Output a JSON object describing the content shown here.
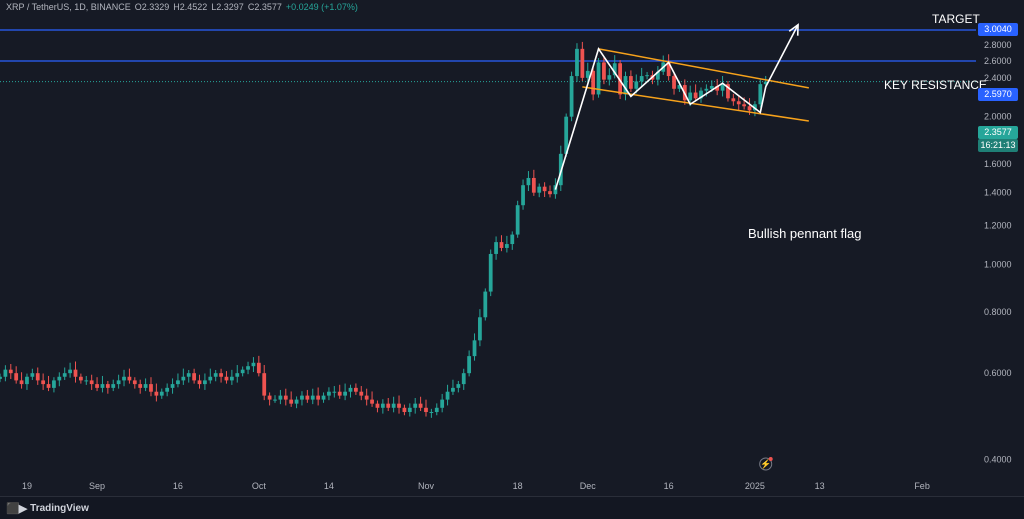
{
  "header": {
    "symbol": "XRP / TetherUS, 1D, BINANCE",
    "open": "O2.3329",
    "high": "H2.4522",
    "low": "L2.3297",
    "close": "C2.3577",
    "change": "+0.0249 (+1.07%)"
  },
  "annotations": {
    "target": "TARGET",
    "key_resistance": "KEY RESISTANCE",
    "pattern": "Bullish pennant flag"
  },
  "price_tags": {
    "target": "3.0040",
    "resistance": "2.5970",
    "current": "2.3577",
    "countdown": "16:21:13"
  },
  "footer": {
    "brand": "TradingView"
  },
  "colors": {
    "background": "#161a25",
    "up": "#26a69a",
    "down": "#ef5350",
    "level_line": "#2962ff",
    "pennant": "#f7a21b",
    "arrow": "#ffffff"
  },
  "chart_data": {
    "type": "candlestick",
    "symbol": "XRP / TetherUS",
    "interval": "1D",
    "exchange": "BINANCE",
    "y_axis": {
      "scale": "log",
      "range": [
        0.36,
        3.3
      ],
      "ticks": [
        "2.8000",
        "2.6000",
        "2.4000",
        "2.2000",
        "2.0000",
        "1.8000",
        "1.6000",
        "1.4000",
        "1.2000",
        "1.0000",
        "0.8000",
        "0.6000",
        "0.4000"
      ]
    },
    "x_axis": {
      "range": [
        "2024-08-14",
        "2025-02-11"
      ],
      "ticks": [
        {
          "date": "2024-08-19",
          "label": "19"
        },
        {
          "date": "2024-09-01",
          "label": "Sep"
        },
        {
          "date": "2024-09-16",
          "label": "16"
        },
        {
          "date": "2024-10-01",
          "label": "Oct"
        },
        {
          "date": "2024-10-14",
          "label": "14"
        },
        {
          "date": "2024-11-01",
          "label": "Nov"
        },
        {
          "date": "2024-11-18",
          "label": "18"
        },
        {
          "date": "2024-12-01",
          "label": "Dec"
        },
        {
          "date": "2024-12-16",
          "label": "16"
        },
        {
          "date": "2025-01-01",
          "label": "2025"
        },
        {
          "date": "2025-01-13",
          "label": "13"
        },
        {
          "date": "2025-02-01",
          "label": "Feb"
        }
      ]
    },
    "levels": [
      {
        "label": "TARGET",
        "value": 3.004
      },
      {
        "label": "KEY RESISTANCE",
        "value": 2.597
      },
      {
        "value": 2.3577
      }
    ],
    "closes": [
      0.59,
      0.61,
      0.6,
      0.58,
      0.57,
      0.59,
      0.6,
      0.58,
      0.57,
      0.56,
      0.58,
      0.59,
      0.6,
      0.61,
      0.59,
      0.58,
      0.58,
      0.57,
      0.56,
      0.57,
      0.56,
      0.57,
      0.58,
      0.59,
      0.58,
      0.57,
      0.56,
      0.57,
      0.55,
      0.54,
      0.55,
      0.56,
      0.57,
      0.58,
      0.59,
      0.6,
      0.58,
      0.57,
      0.58,
      0.59,
      0.6,
      0.59,
      0.58,
      0.59,
      0.6,
      0.61,
      0.62,
      0.63,
      0.6,
      0.54,
      0.53,
      0.53,
      0.54,
      0.53,
      0.52,
      0.53,
      0.54,
      0.53,
      0.54,
      0.53,
      0.54,
      0.55,
      0.55,
      0.54,
      0.55,
      0.56,
      0.55,
      0.54,
      0.53,
      0.52,
      0.51,
      0.52,
      0.51,
      0.52,
      0.51,
      0.5,
      0.51,
      0.52,
      0.51,
      0.5,
      0.5,
      0.51,
      0.53,
      0.55,
      0.56,
      0.57,
      0.6,
      0.65,
      0.7,
      0.78,
      0.88,
      1.05,
      1.11,
      1.08,
      1.1,
      1.15,
      1.32,
      1.45,
      1.5,
      1.4,
      1.44,
      1.41,
      1.39,
      1.45,
      1.68,
      2.0,
      2.42,
      2.75,
      2.4,
      2.48,
      2.22,
      2.58,
      2.38,
      2.43,
      2.57,
      2.22,
      2.42,
      2.28,
      2.36,
      2.42,
      2.43,
      2.38,
      2.47,
      2.58,
      2.42,
      2.28,
      2.32,
      2.16,
      2.24,
      2.18,
      2.26,
      2.28,
      2.31,
      2.26,
      2.33,
      2.18,
      2.15,
      2.12,
      2.1,
      2.06,
      2.12,
      2.33,
      2.3577
    ],
    "candles_start": "2024-08-14",
    "pennant": {
      "upper": [
        [
          "2024-12-03",
          2.75
        ],
        [
          "2025-01-11",
          2.29
        ]
      ],
      "lower": [
        [
          "2024-11-30",
          2.3
        ],
        [
          "2025-01-11",
          1.96
        ]
      ]
    },
    "zigzag": [
      [
        "2024-11-25",
        1.42
      ],
      [
        "2024-12-03",
        2.75
      ],
      [
        "2024-12-09",
        2.2
      ],
      [
        "2024-12-16",
        2.58
      ],
      [
        "2024-12-20",
        2.12
      ],
      [
        "2024-12-26",
        2.34
      ],
      [
        "2025-01-02",
        2.04
      ],
      [
        "2025-01-03",
        2.3
      ],
      [
        "2025-01-09",
        3.08
      ]
    ]
  }
}
